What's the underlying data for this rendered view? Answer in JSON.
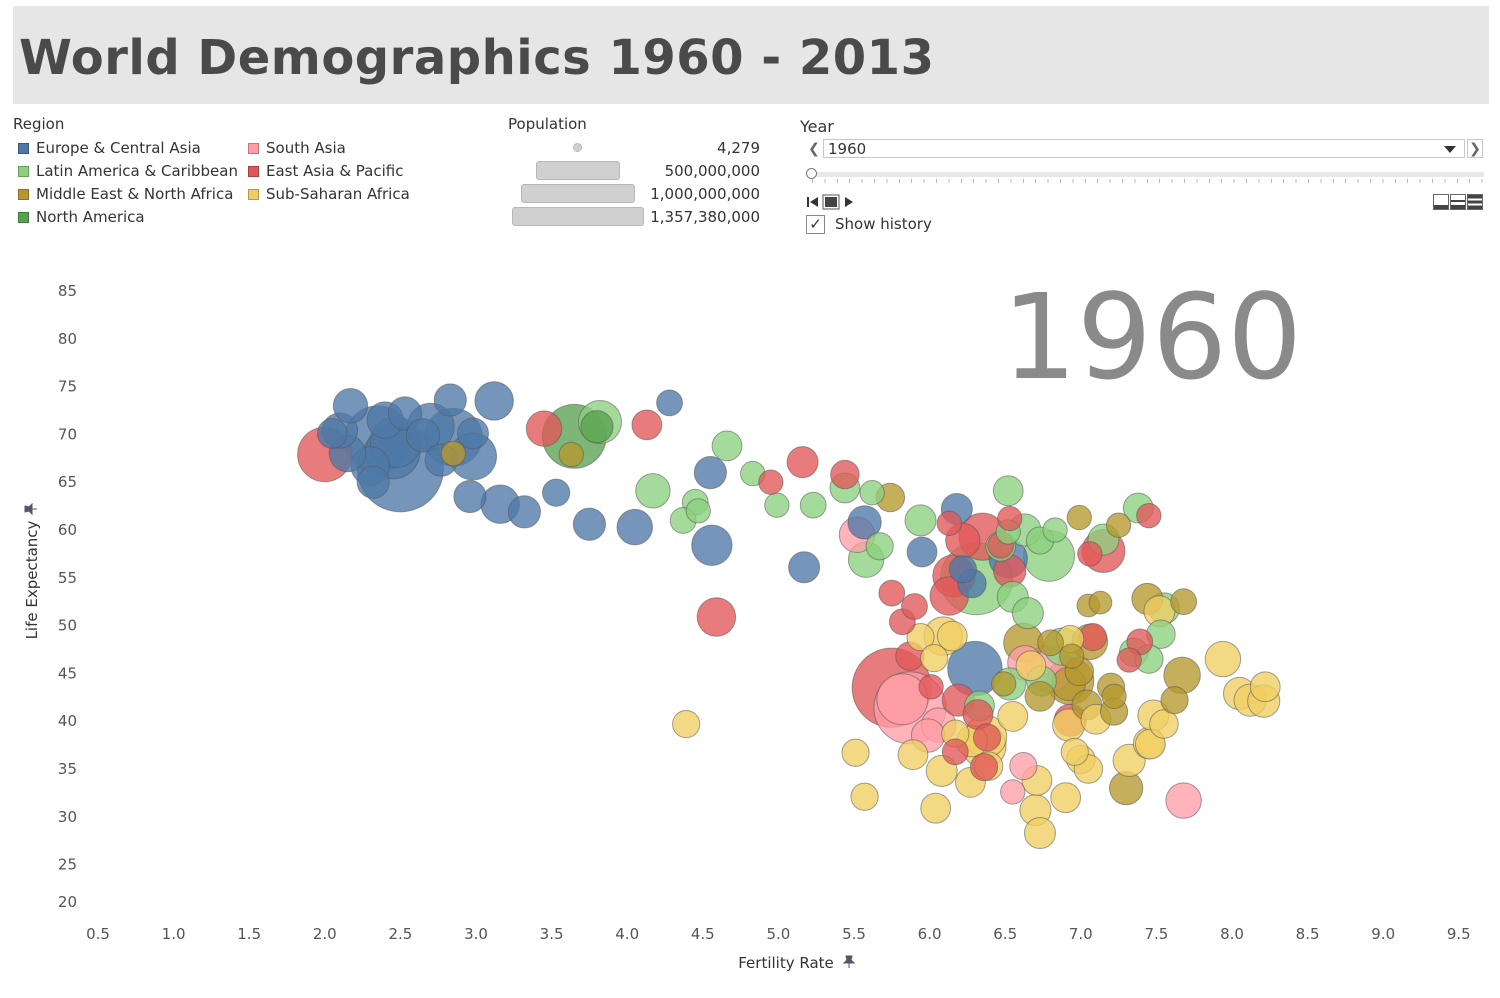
{
  "dashboard": {
    "title": "World Demographics 1960 - 2013"
  },
  "region_legend": {
    "title": "Region",
    "items": [
      {
        "label": "Europe & Central Asia",
        "color": "#4e79a7"
      },
      {
        "label": "Latin America & Caribbean",
        "color": "#8cd17d"
      },
      {
        "label": "Middle East & North Africa",
        "color": "#b6992d"
      },
      {
        "label": "North America",
        "color": "#59a14f"
      },
      {
        "label": "South Asia",
        "color": "#ff9da7"
      },
      {
        "label": "East Asia & Pacific",
        "color": "#e15759"
      },
      {
        "label": "Sub-Saharan Africa",
        "color": "#f1ce63"
      }
    ]
  },
  "population_legend": {
    "title": "Population",
    "items": [
      {
        "label": "4,279",
        "value": 4279
      },
      {
        "label": "500,000,000",
        "value": 500000000
      },
      {
        "label": "1,000,000,000",
        "value": 1000000000
      },
      {
        "label": "1,357,380,000",
        "value": 1357380000
      }
    ]
  },
  "year_filter": {
    "title": "Year",
    "selected": "1960",
    "min_year": 1960,
    "max_year": 2013,
    "show_history_label": "Show history",
    "show_history_checked": true
  },
  "chart_data": {
    "type": "scatter",
    "title": "1960",
    "xlabel": "Fertility Rate",
    "ylabel": "Life Expectancy",
    "xlim": [
      0.5,
      9.5
    ],
    "ylim": [
      20,
      85
    ],
    "xticks": [
      "0.5",
      "1.0",
      "1.5",
      "2.0",
      "2.5",
      "3.0",
      "3.5",
      "4.0",
      "4.5",
      "5.0",
      "5.5",
      "6.0",
      "6.5",
      "7.0",
      "7.5",
      "8.0",
      "8.5",
      "9.0",
      "9.5"
    ],
    "yticks": [
      "20",
      "25",
      "30",
      "35",
      "40",
      "45",
      "50",
      "55",
      "60",
      "65",
      "70",
      "75",
      "80",
      "85"
    ],
    "size_by": "Population",
    "color_by": "Region",
    "series": [
      {
        "name": "Europe & Central Asia",
        "points": [
          [
            2.17,
            73.0,
            16
          ],
          [
            2.47,
            69.2,
            35
          ],
          [
            2.4,
            71.5,
            18
          ],
          [
            2.53,
            72.2,
            15
          ],
          [
            2.7,
            70.8,
            30
          ],
          [
            2.83,
            73.6,
            14
          ],
          [
            2.98,
            70.1,
            13
          ],
          [
            3.12,
            73.5,
            20
          ],
          [
            2.35,
            69.5,
            60
          ],
          [
            2.5,
            66.4,
            100
          ],
          [
            2.3,
            66.7,
            20
          ],
          [
            2.32,
            65.0,
            14
          ],
          [
            2.15,
            68.0,
            18
          ],
          [
            2.1,
            70.4,
            17
          ],
          [
            2.05,
            70.1,
            12
          ],
          [
            2.85,
            69.7,
            45
          ],
          [
            2.98,
            67.7,
            30
          ],
          [
            2.77,
            67.3,
            14
          ],
          [
            2.65,
            69.9,
            15
          ],
          [
            2.96,
            63.5,
            14
          ],
          [
            3.16,
            62.7,
            20
          ],
          [
            3.32,
            61.9,
            14
          ],
          [
            3.53,
            63.9,
            10
          ],
          [
            3.75,
            60.6,
            14
          ],
          [
            4.05,
            60.3,
            17
          ],
          [
            4.28,
            73.3,
            9
          ],
          [
            4.55,
            66.0,
            14
          ],
          [
            4.56,
            58.4,
            22
          ],
          [
            5.17,
            56.1,
            13
          ],
          [
            5.57,
            60.8,
            15
          ],
          [
            6.18,
            62.2,
            13
          ],
          [
            6.52,
            57.0,
            20
          ],
          [
            6.28,
            54.4,
            11
          ],
          [
            6.3,
            45.5,
            40
          ],
          [
            5.95,
            57.7,
            12
          ],
          [
            6.22,
            55.9,
            10
          ],
          [
            2.45,
            68.2,
            40
          ]
        ]
      },
      {
        "name": "Latin America & Caribbean",
        "points": [
          [
            4.66,
            68.8,
            12
          ],
          [
            4.83,
            65.9,
            8
          ],
          [
            4.99,
            62.6,
            8
          ],
          [
            4.17,
            64.1,
            16
          ],
          [
            4.45,
            62.9,
            9
          ],
          [
            4.37,
            61.0,
            9
          ],
          [
            4.47,
            62.0,
            8
          ],
          [
            3.82,
            71.3,
            25
          ],
          [
            5.23,
            62.6,
            9
          ],
          [
            5.44,
            64.4,
            12
          ],
          [
            5.62,
            63.9,
            8
          ],
          [
            5.94,
            61.0,
            13
          ],
          [
            5.67,
            58.3,
            10
          ],
          [
            5.58,
            56.9,
            17
          ],
          [
            6.31,
            54.9,
            70
          ],
          [
            6.47,
            58.3,
            12
          ],
          [
            6.52,
            59.8,
            8
          ],
          [
            6.63,
            60.0,
            14
          ],
          [
            6.79,
            57.3,
            35
          ],
          [
            6.52,
            64.1,
            12
          ],
          [
            6.73,
            58.9,
            10
          ],
          [
            6.83,
            60.0,
            8
          ],
          [
            7.15,
            59.0,
            13
          ],
          [
            7.38,
            62.3,
            12
          ],
          [
            7.53,
            49.1,
            11
          ],
          [
            7.55,
            51.8,
            13
          ],
          [
            6.55,
            53.0,
            13
          ],
          [
            6.65,
            51.3,
            13
          ],
          [
            6.88,
            47.8,
            19
          ],
          [
            6.53,
            43.9,
            14
          ],
          [
            6.74,
            44.2,
            12
          ],
          [
            6.33,
            41.6,
            12
          ],
          [
            7.35,
            47.2,
            11
          ],
          [
            7.45,
            46.5,
            11
          ]
        ]
      },
      {
        "name": "Middle East & North Africa",
        "points": [
          [
            3.63,
            67.9,
            8
          ],
          [
            2.85,
            68.0,
            8
          ],
          [
            5.74,
            63.4,
            11
          ],
          [
            6.99,
            61.3,
            8
          ],
          [
            7.25,
            60.5,
            8
          ],
          [
            7.44,
            52.8,
            13
          ],
          [
            7.68,
            52.5,
            9
          ],
          [
            7.05,
            52.1,
            7
          ],
          [
            7.13,
            52.4,
            7
          ],
          [
            6.62,
            48.2,
            21
          ],
          [
            6.8,
            48.2,
            9
          ],
          [
            7.06,
            48.3,
            17
          ],
          [
            6.99,
            45.2,
            11
          ],
          [
            6.94,
            46.8,
            8
          ],
          [
            6.93,
            44.2,
            30
          ],
          [
            7.2,
            43.6,
            10
          ],
          [
            6.73,
            42.6,
            12
          ],
          [
            6.49,
            43.9,
            8
          ],
          [
            6.92,
            43.9,
            15
          ],
          [
            7.04,
            41.7,
            12
          ],
          [
            7.22,
            41.0,
            10
          ],
          [
            7.62,
            42.2,
            10
          ],
          [
            7.67,
            44.8,
            18
          ],
          [
            7.3,
            33.0,
            15
          ],
          [
            7.22,
            42.6,
            8
          ]
        ]
      },
      {
        "name": "North America",
        "points": [
          [
            3.65,
            69.8,
            55
          ],
          [
            3.8,
            70.8,
            14
          ]
        ]
      },
      {
        "name": "South Asia",
        "points": [
          [
            5.87,
            41.4,
            70
          ],
          [
            5.52,
            59.5,
            17
          ],
          [
            5.82,
            42.3,
            35
          ],
          [
            5.99,
            38.5,
            15
          ],
          [
            6.06,
            39.6,
            16
          ],
          [
            6.79,
            45.5,
            30
          ],
          [
            6.63,
            46.1,
            16
          ],
          [
            6.62,
            35.3,
            10
          ],
          [
            7.68,
            31.7,
            17
          ],
          [
            6.55,
            32.6,
            8
          ]
        ]
      },
      {
        "name": "East Asia & Pacific",
        "points": [
          [
            2.0,
            67.9,
            40
          ],
          [
            3.45,
            70.6,
            17
          ],
          [
            4.13,
            71.0,
            12
          ],
          [
            4.59,
            50.9,
            20
          ],
          [
            5.16,
            67.1,
            13
          ],
          [
            5.44,
            65.8,
            11
          ],
          [
            4.95,
            65.0,
            8
          ],
          [
            5.75,
            43.5,
            85
          ],
          [
            5.87,
            46.8,
            11
          ],
          [
            6.13,
            53.1,
            20
          ],
          [
            6.22,
            58.9,
            16
          ],
          [
            6.35,
            59.3,
            30
          ],
          [
            6.47,
            58.4,
            9
          ],
          [
            6.53,
            55.7,
            14
          ],
          [
            6.16,
            55.2,
            24
          ],
          [
            6.53,
            61.2,
            8
          ],
          [
            6.13,
            60.7,
            8
          ],
          [
            6.32,
            40.7,
            12
          ],
          [
            6.01,
            43.6,
            8
          ],
          [
            6.19,
            42.2,
            14
          ],
          [
            7.08,
            48.8,
            10
          ],
          [
            7.15,
            57.8,
            25
          ],
          [
            7.06,
            57.5,
            8
          ],
          [
            7.45,
            61.5,
            8
          ],
          [
            6.93,
            40.1,
            14
          ],
          [
            7.39,
            48.3,
            9
          ],
          [
            7.32,
            46.4,
            8
          ],
          [
            5.82,
            50.4,
            9
          ],
          [
            6.38,
            38.3,
            10
          ],
          [
            6.36,
            35.2,
            10
          ],
          [
            5.9,
            52.0,
            9
          ],
          [
            5.75,
            53.4,
            9
          ],
          [
            6.17,
            36.8,
            9
          ]
        ]
      },
      {
        "name": "Sub-Saharan Africa",
        "points": [
          [
            4.39,
            39.7,
            10
          ],
          [
            5.51,
            36.7,
            10
          ],
          [
            5.57,
            32.1,
            10
          ],
          [
            5.89,
            36.5,
            12
          ],
          [
            5.94,
            48.8,
            10
          ],
          [
            6.09,
            48.9,
            20
          ],
          [
            6.03,
            46.6,
            10
          ],
          [
            6.17,
            38.7,
            10
          ],
          [
            6.08,
            34.8,
            13
          ],
          [
            6.28,
            37.9,
            13
          ],
          [
            6.27,
            33.6,
            12
          ],
          [
            6.36,
            37.4,
            26
          ],
          [
            6.39,
            35.3,
            11
          ],
          [
            6.15,
            48.9,
            12
          ],
          [
            6.55,
            40.5,
            12
          ],
          [
            6.71,
            33.8,
            12
          ],
          [
            6.92,
            39.6,
            14
          ],
          [
            6.9,
            32.0,
            12
          ],
          [
            7.0,
            36.0,
            11
          ],
          [
            7.05,
            35.0,
            11
          ],
          [
            7.1,
            40.2,
            12
          ],
          [
            7.32,
            35.9,
            14
          ],
          [
            7.55,
            39.7,
            11
          ],
          [
            7.45,
            37.7,
            13
          ],
          [
            7.48,
            40.6,
            13
          ],
          [
            7.52,
            51.5,
            13
          ],
          [
            7.94,
            46.5,
            17
          ],
          [
            8.05,
            42.9,
            14
          ],
          [
            8.12,
            42.2,
            14
          ],
          [
            8.21,
            42.1,
            14
          ],
          [
            8.22,
            43.6,
            12
          ],
          [
            6.7,
            30.7,
            13
          ],
          [
            6.93,
            48.6,
            10
          ],
          [
            6.67,
            45.8,
            12
          ],
          [
            7.46,
            37.6,
            12
          ],
          [
            6.96,
            36.8,
            10
          ],
          [
            6.73,
            28.3,
            13
          ],
          [
            6.04,
            30.9,
            12
          ],
          [
            6.37,
            38.4,
            24
          ]
        ]
      }
    ]
  }
}
